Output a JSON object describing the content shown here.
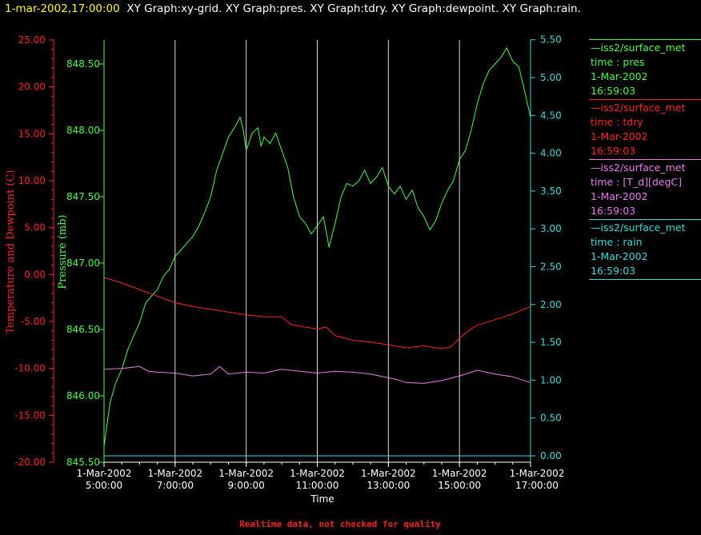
{
  "header": {
    "timestamp": "1-mar-2002,17:00:00",
    "graphs": "XY Graph:xy-grid.  XY Graph:pres.  XY Graph:tdry.  XY Graph:dewpoint.  XY Graph:rain."
  },
  "footer": {
    "note": "Realtime data, not checked for quality"
  },
  "colors": {
    "pres": "#44ff44",
    "tdry": "#ff2222",
    "dew": "#ee77ee",
    "rain": "#33dddd",
    "grid": "#ffffff",
    "axisLeft": "#ff2222"
  },
  "legend": [
    {
      "line1": "iss2/surface_met",
      "line2": "time : pres",
      "line3": "1-Mar-2002",
      "line4": "16:59:03",
      "color": "#44ff44"
    },
    {
      "line1": "iss2/surface_met",
      "line2": "time : tdry",
      "line3": "1-Mar-2002",
      "line4": "16:59:03",
      "color": "#ff2222"
    },
    {
      "line1": "iss2/surface_met",
      "line2": "time : [T_d][degC]",
      "line3": "1-Mar-2002",
      "line4": "16:59:03",
      "color": "#ee77ee"
    },
    {
      "line1": "iss2/surface_met",
      "line2": "time : rain",
      "line3": "1-Mar-2002",
      "line4": "16:59:03",
      "color": "#33dddd"
    }
  ],
  "chart_data": {
    "type": "line",
    "xlabel": "Time",
    "ylabel_left": "Temperature and Dewpoint (C)",
    "ylabel_pres": "Pressure (mb)",
    "xlim_hours": [
      5,
      17
    ],
    "ylim_temp": [
      -20,
      25
    ],
    "ylim_pres": [
      845.5,
      848.75
    ],
    "ylim_rain": [
      0,
      5.5
    ],
    "temp_ticks": [
      "25.00",
      "20.00",
      "15.00",
      "10.00",
      "5.00",
      "0.00",
      "-5.00",
      "-10.00",
      "-15.00",
      "-20.00"
    ],
    "pres_ticks": [
      "848.50",
      "848.00",
      "847.50",
      "847.00",
      "846.50",
      "846.00",
      "845.50"
    ],
    "rain_ticks": [
      "5.50",
      "5.00",
      "4.50",
      "4.00",
      "3.50",
      "3.00",
      "2.50",
      "2.00",
      "1.50",
      "1.00",
      "0.50",
      "0.00"
    ],
    "x_ticks": [
      {
        "date": "1-Mar-2002",
        "time": "5:00:00"
      },
      {
        "date": "1-Mar-2002",
        "time": "7:00:00"
      },
      {
        "date": "1-Mar-2002",
        "time": "9:00:00"
      },
      {
        "date": "1-Mar-2002",
        "time": "11:00:00"
      },
      {
        "date": "1-Mar-2002",
        "time": "13:00:00"
      },
      {
        "date": "1-Mar-2002",
        "time": "15:00:00"
      },
      {
        "date": "1-Mar-2002",
        "time": "17:00:00"
      }
    ],
    "grid": "vertical",
    "series": [
      {
        "key": "pres",
        "axis": "pres",
        "x": [
          5.0,
          5.17,
          5.33,
          5.5,
          5.67,
          5.83,
          6.0,
          6.17,
          6.33,
          6.5,
          6.67,
          6.83,
          7.0,
          7.17,
          7.33,
          7.5,
          7.67,
          7.83,
          8.0,
          8.17,
          8.33,
          8.5,
          8.67,
          8.83,
          8.92,
          9.0,
          9.17,
          9.33,
          9.42,
          9.5,
          9.67,
          9.83,
          10.0,
          10.17,
          10.33,
          10.5,
          10.67,
          10.83,
          11.0,
          11.17,
          11.33,
          11.5,
          11.67,
          11.83,
          12.0,
          12.17,
          12.33,
          12.5,
          12.67,
          12.83,
          13.0,
          13.17,
          13.33,
          13.5,
          13.67,
          13.83,
          14.0,
          14.17,
          14.33,
          14.5,
          14.67,
          14.83,
          15.0,
          15.17,
          15.33,
          15.5,
          15.67,
          15.83,
          16.0,
          16.17,
          16.33,
          16.5,
          16.67,
          16.83,
          17.0
        ],
        "y": [
          845.62,
          845.95,
          846.1,
          846.2,
          846.35,
          846.45,
          846.55,
          846.7,
          846.75,
          846.8,
          846.9,
          846.95,
          847.05,
          847.1,
          847.15,
          847.2,
          847.28,
          847.38,
          847.5,
          847.7,
          847.82,
          847.95,
          848.02,
          848.1,
          848.0,
          847.85,
          847.98,
          848.02,
          847.88,
          847.95,
          847.9,
          847.98,
          847.85,
          847.72,
          847.5,
          847.35,
          847.3,
          847.22,
          847.28,
          847.35,
          847.12,
          847.3,
          847.5,
          847.6,
          847.58,
          847.62,
          847.7,
          847.6,
          847.65,
          847.72,
          847.58,
          847.52,
          847.58,
          847.48,
          847.55,
          847.42,
          847.35,
          847.25,
          847.32,
          847.45,
          847.55,
          847.62,
          847.78,
          847.85,
          848.0,
          848.2,
          848.35,
          848.45,
          848.5,
          848.55,
          848.62,
          848.52,
          848.48,
          848.3,
          848.1
        ]
      },
      {
        "key": "tdry",
        "axis": "temp",
        "x": [
          5.0,
          5.5,
          6.0,
          6.5,
          7.0,
          7.5,
          8.0,
          8.5,
          9.0,
          9.5,
          10.0,
          10.25,
          10.5,
          11.0,
          11.25,
          11.5,
          12.0,
          12.5,
          13.0,
          13.5,
          14.0,
          14.5,
          14.75,
          15.0,
          15.25,
          15.5,
          16.0,
          16.5,
          17.0
        ],
        "y": [
          -0.3,
          -0.9,
          -1.6,
          -2.3,
          -3.0,
          -3.4,
          -3.7,
          -4.0,
          -4.3,
          -4.5,
          -4.5,
          -5.3,
          -5.5,
          -5.8,
          -5.6,
          -6.5,
          -7.0,
          -7.2,
          -7.5,
          -7.8,
          -7.6,
          -7.9,
          -7.7,
          -6.8,
          -6.0,
          -5.4,
          -4.8,
          -4.2,
          -3.4
        ]
      },
      {
        "key": "dew",
        "axis": "temp",
        "x": [
          5.0,
          5.5,
          6.0,
          6.25,
          6.5,
          7.0,
          7.5,
          8.0,
          8.25,
          8.5,
          9.0,
          9.5,
          10.0,
          10.5,
          11.0,
          11.5,
          12.0,
          12.5,
          13.0,
          13.25,
          13.5,
          14.0,
          14.5,
          15.0,
          15.5,
          16.0,
          16.5,
          17.0
        ],
        "y": [
          -10.1,
          -10.0,
          -9.8,
          -10.3,
          -10.4,
          -10.5,
          -10.8,
          -10.6,
          -9.8,
          -10.6,
          -10.4,
          -10.5,
          -10.1,
          -10.3,
          -10.5,
          -10.3,
          -10.4,
          -10.6,
          -11.0,
          -11.2,
          -11.5,
          -11.6,
          -11.3,
          -10.8,
          -10.2,
          -10.6,
          -10.9,
          -11.5
        ]
      },
      {
        "key": "rain",
        "axis": "rain",
        "x": [
          5.0,
          17.0
        ],
        "y": [
          0.0,
          0.0
        ]
      }
    ]
  }
}
